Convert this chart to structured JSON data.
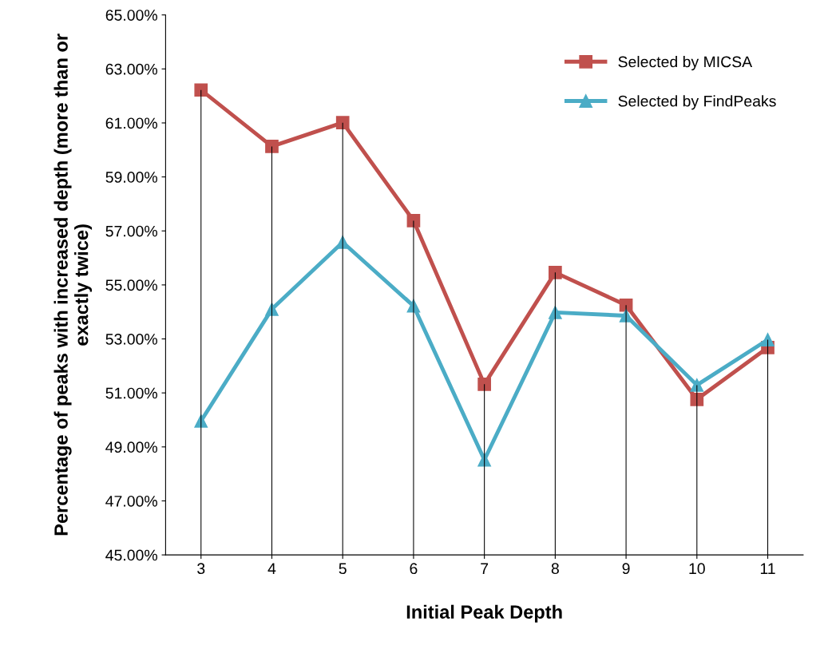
{
  "chart_data": {
    "type": "line",
    "xlabel": "Initial Peak Depth",
    "ylabel": "Percentage of peaks with increased depth (more than or exactly twice)",
    "categories": [
      "3",
      "4",
      "5",
      "6",
      "7",
      "8",
      "9",
      "10",
      "11"
    ],
    "series": [
      {
        "type": "bar",
        "color": "#000000",
        "values": [
          62.22,
          60.13,
          61.01,
          57.38,
          51.32,
          55.46,
          54.25,
          51.29,
          52.97
        ]
      },
      {
        "name": "Selected by MICSA",
        "color": "#c0504d",
        "marker": "square",
        "values": [
          62.22,
          60.13,
          61.01,
          57.38,
          51.32,
          55.46,
          54.25,
          50.76,
          52.68
        ]
      },
      {
        "name": "Selected by FindPeaks",
        "color": "#4bacc6",
        "marker": "triangle",
        "values": [
          49.96,
          54.1,
          56.58,
          54.22,
          48.52,
          53.98,
          53.86,
          51.29,
          52.97
        ]
      }
    ],
    "ylim": [
      45,
      65
    ],
    "yticks": [
      {
        "value": 45,
        "label": "45.00%"
      },
      {
        "value": 47,
        "label": "47.00%"
      },
      {
        "value": 49,
        "label": "49.00%"
      },
      {
        "value": 51,
        "label": "51.00%"
      },
      {
        "value": 53,
        "label": "53.00%"
      },
      {
        "value": 55,
        "label": "55.00%"
      },
      {
        "value": 57,
        "label": "57.00%"
      },
      {
        "value": 59,
        "label": "59.00%"
      },
      {
        "value": 61,
        "label": "61.00%"
      },
      {
        "value": 63,
        "label": "63.00%"
      },
      {
        "value": 65,
        "label": "65.00%"
      }
    ],
    "grid": false,
    "legend": "top right",
    "line_style": "solid"
  }
}
